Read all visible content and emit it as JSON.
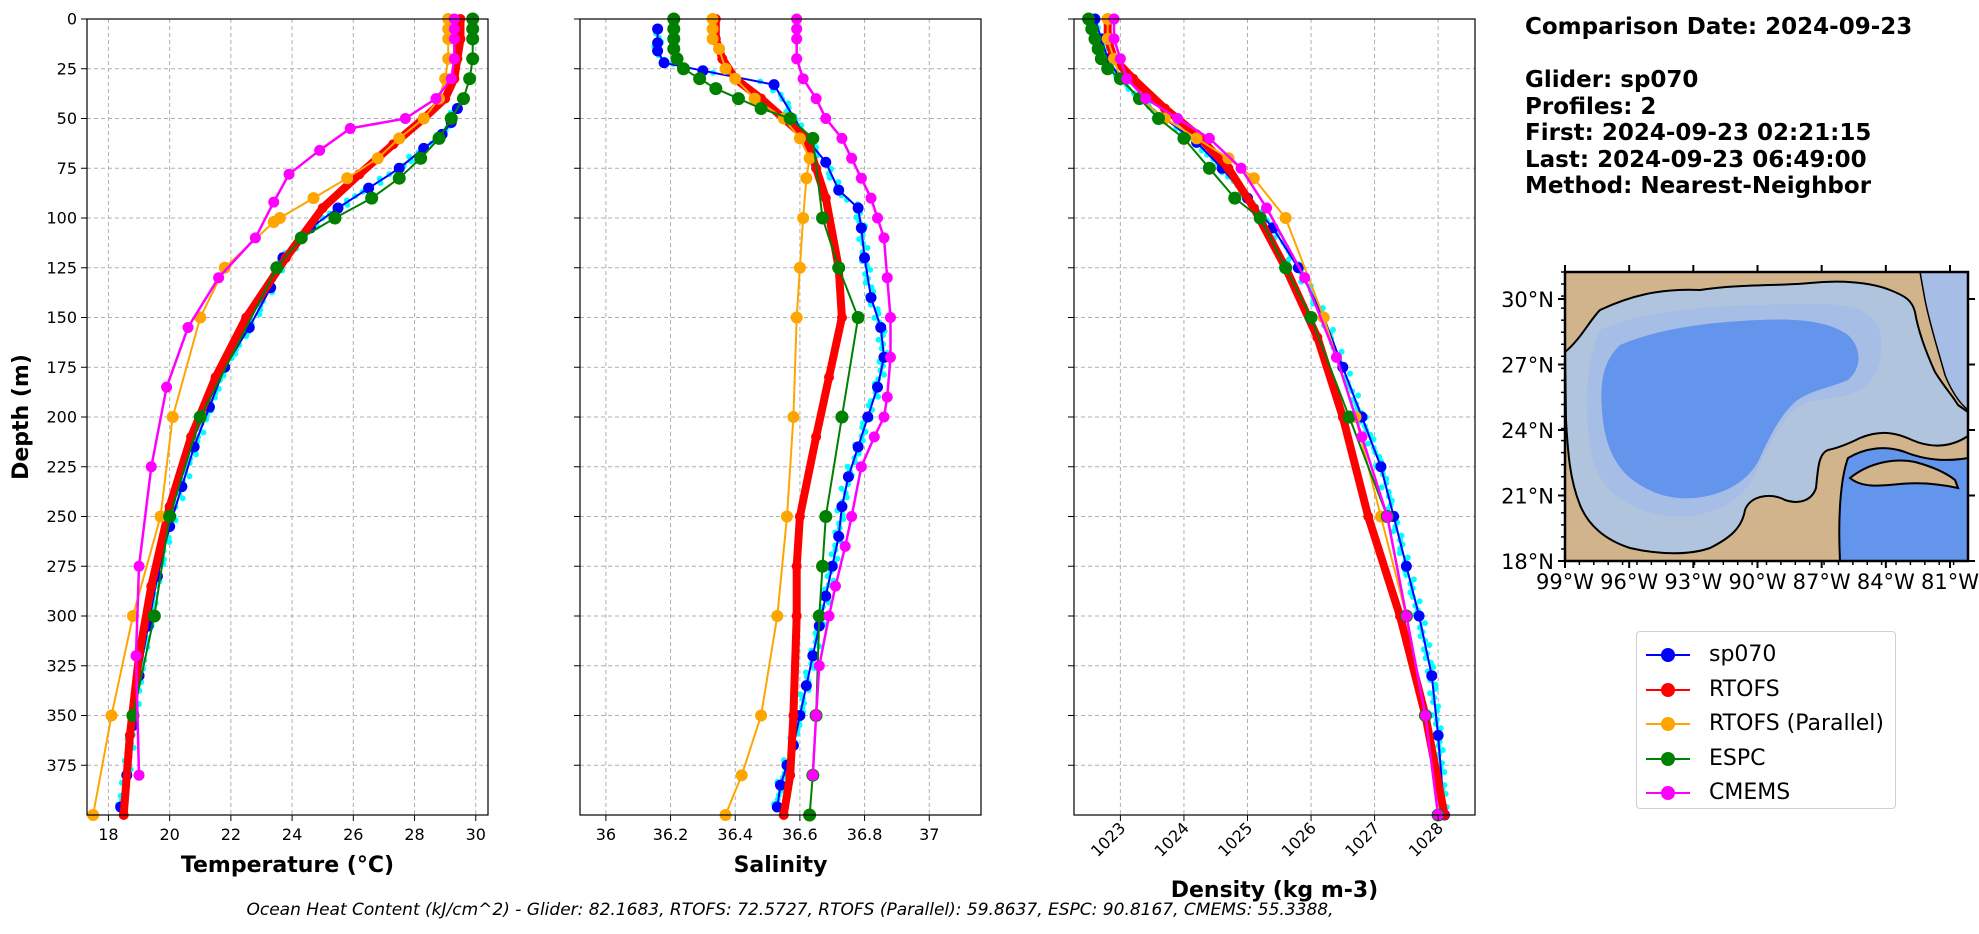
{
  "info": {
    "comparison": "Comparison Date: 2024-09-23",
    "glider": "Glider: sp070",
    "profiles": "Profiles: 2",
    "first": "First: 2024-09-23 02:21:15",
    "last": "Last: 2024-09-23 06:49:00",
    "method": "Method: Nearest-Neighbor"
  },
  "footer": "Ocean Heat Content (kJ/cm^2) - Glider: 82.1683,  RTOFS: 72.5727,  RTOFS (Parallel): 59.8637,  ESPC: 90.8167,  CMEMS: 55.3388,",
  "colors": {
    "sp070": "#0000ff",
    "RTOFS": "#ff0000",
    "RTOFS_parallel": "#ffa500",
    "ESPC": "#008000",
    "CMEMS": "#ff00ff",
    "glider_raw": "#00ffff",
    "land": "#d2b48c",
    "shelf": "#b0c4de",
    "slope": "#a6bde6",
    "deep": "#6495ed"
  },
  "legend": [
    {
      "label": "sp070",
      "color": "#0000ff"
    },
    {
      "label": "RTOFS",
      "color": "#ff0000"
    },
    {
      "label": "RTOFS (Parallel)",
      "color": "#ffa500"
    },
    {
      "label": "ESPC",
      "color": "#008000"
    },
    {
      "label": "CMEMS",
      "color": "#ff00ff"
    }
  ],
  "chart_data": [
    {
      "type": "line",
      "xlabel": "Temperature (°C)",
      "ylabel": "Depth (m)",
      "xlim": [
        17.3,
        30.4
      ],
      "ylim": [
        400,
        0
      ],
      "xticks": [
        18,
        20,
        22,
        24,
        26,
        28,
        30
      ],
      "yticks": [
        0,
        25,
        50,
        75,
        100,
        125,
        150,
        175,
        200,
        225,
        250,
        275,
        300,
        325,
        350,
        375
      ],
      "grid": true,
      "series": [
        {
          "name": "sp070",
          "x": [
            29.4,
            29.2,
            28.9,
            28.3,
            27.5,
            26.5,
            25.5,
            24.6,
            23.7,
            23.3,
            22.6,
            21.8,
            21.3,
            20.8,
            20.4,
            20.0,
            19.6,
            19.3,
            19.0,
            18.8,
            18.6,
            18.4
          ],
          "y": [
            45,
            52,
            58,
            65,
            75,
            85,
            95,
            105,
            120,
            135,
            155,
            175,
            195,
            215,
            235,
            255,
            280,
            305,
            330,
            355,
            380,
            396
          ]
        },
        {
          "name": "RTOFS",
          "x": [
            29.5,
            29.5,
            29.4,
            29.3,
            29.0,
            28.3,
            27.3,
            26.2,
            25.0,
            23.8,
            22.5,
            21.5,
            20.7,
            20.0,
            19.4,
            19.0,
            18.7,
            18.5
          ],
          "y": [
            0,
            10,
            20,
            30,
            40,
            50,
            63,
            78,
            95,
            120,
            150,
            180,
            210,
            245,
            285,
            320,
            360,
            400
          ]
        },
        {
          "name": "RTOFS (Parallel)",
          "x": [
            29.1,
            29.1,
            29.1,
            29.1,
            29.0,
            28.8,
            28.3,
            27.5,
            26.8,
            25.8,
            24.7,
            23.6,
            23.4,
            21.8,
            21.0,
            20.1,
            19.7,
            18.8,
            18.1,
            17.5
          ],
          "y": [
            0,
            5,
            10,
            20,
            30,
            40,
            50,
            60,
            70,
            80,
            90,
            100,
            102,
            125,
            150,
            200,
            250,
            300,
            350,
            400
          ]
        },
        {
          "name": "ESPC",
          "x": [
            29.9,
            29.9,
            29.9,
            29.9,
            29.8,
            29.6,
            29.2,
            28.8,
            28.2,
            27.5,
            26.6,
            25.4,
            24.3,
            23.5,
            21.0,
            20.0,
            19.5,
            18.8
          ],
          "y": [
            0,
            5,
            10,
            20,
            30,
            40,
            50,
            60,
            70,
            80,
            90,
            100,
            110,
            125,
            200,
            250,
            300,
            350
          ]
        },
        {
          "name": "CMEMS",
          "x": [
            29.3,
            29.3,
            29.3,
            29.3,
            29.2,
            28.7,
            27.7,
            25.9,
            24.9,
            23.9,
            23.4,
            22.8,
            21.6,
            20.6,
            19.9,
            19.4,
            19.0,
            18.9,
            19.0
          ],
          "y": [
            0,
            5,
            10,
            20,
            30,
            40,
            50,
            55,
            66,
            78,
            92,
            110,
            130,
            155,
            185,
            225,
            275,
            320,
            380
          ]
        }
      ]
    },
    {
      "type": "line",
      "xlabel": "Salinity",
      "ylabel": "",
      "xlim": [
        35.92,
        37.16
      ],
      "ylim": [
        400,
        0
      ],
      "xticks": [
        36.0,
        36.2,
        36.4,
        36.6,
        36.8,
        37.0
      ],
      "yticks": [
        0,
        25,
        50,
        75,
        100,
        125,
        150,
        175,
        200,
        225,
        250,
        275,
        300,
        325,
        350,
        375
      ],
      "grid": true,
      "series": [
        {
          "name": "sp070",
          "x": [
            36.16,
            36.16,
            36.16,
            36.18,
            36.3,
            36.52,
            36.62,
            36.68,
            36.72,
            36.78,
            36.79,
            36.8,
            36.82,
            36.85,
            36.86,
            36.84,
            36.81,
            36.78,
            36.75,
            36.73,
            36.72,
            36.7,
            36.68,
            36.66,
            36.64,
            36.62,
            36.6,
            36.58,
            36.56,
            36.54,
            36.53
          ],
          "y": [
            5,
            12,
            16,
            22,
            26,
            33,
            60,
            72,
            86,
            95,
            105,
            120,
            140,
            155,
            170,
            185,
            200,
            215,
            230,
            245,
            260,
            275,
            290,
            305,
            320,
            335,
            350,
            365,
            375,
            385,
            396
          ]
        },
        {
          "name": "RTOFS",
          "x": [
            36.34,
            36.34,
            36.36,
            36.4,
            36.48,
            36.55,
            36.62,
            36.65,
            36.68,
            36.72,
            36.73,
            36.69,
            36.65,
            36.6,
            36.59,
            36.59,
            36.58,
            36.57,
            36.55
          ],
          "y": [
            0,
            10,
            20,
            30,
            40,
            50,
            60,
            75,
            90,
            125,
            150,
            180,
            210,
            250,
            275,
            300,
            350,
            380,
            400
          ]
        },
        {
          "name": "RTOFS (Parallel)",
          "x": [
            36.33,
            36.33,
            36.33,
            36.35,
            36.37,
            36.4,
            36.46,
            36.55,
            36.6,
            36.63,
            36.62,
            36.61,
            36.6,
            36.59,
            36.58,
            36.56,
            36.53,
            36.48,
            36.42,
            36.37
          ],
          "y": [
            0,
            5,
            10,
            15,
            25,
            30,
            40,
            50,
            60,
            70,
            80,
            100,
            125,
            150,
            200,
            250,
            300,
            350,
            380,
            400
          ]
        },
        {
          "name": "ESPC",
          "x": [
            36.21,
            36.21,
            36.21,
            36.21,
            36.22,
            36.24,
            36.29,
            36.34,
            36.41,
            36.48,
            36.57,
            36.64,
            36.67,
            36.72,
            36.78,
            36.73,
            36.68,
            36.67,
            36.66,
            36.65,
            36.64,
            36.63
          ],
          "y": [
            0,
            5,
            10,
            15,
            20,
            25,
            30,
            35,
            40,
            45,
            50,
            60,
            100,
            125,
            150,
            200,
            250,
            275,
            300,
            350,
            380,
            400
          ]
        },
        {
          "name": "CMEMS",
          "x": [
            36.59,
            36.59,
            36.59,
            36.59,
            36.61,
            36.65,
            36.68,
            36.73,
            36.76,
            36.79,
            36.82,
            36.84,
            36.86,
            36.87,
            36.88,
            36.88,
            36.87,
            36.86,
            36.83,
            36.79,
            36.76,
            36.74,
            36.71,
            36.69,
            36.66,
            36.65,
            36.64
          ],
          "y": [
            0,
            5,
            10,
            20,
            30,
            40,
            50,
            60,
            70,
            80,
            90,
            100,
            110,
            130,
            150,
            170,
            190,
            200,
            210,
            225,
            250,
            265,
            285,
            300,
            325,
            350,
            380
          ]
        }
      ]
    },
    {
      "type": "line",
      "xlabel": "Density (kg m-3)",
      "ylabel": "",
      "xlim": [
        1022.27,
        1028.58
      ],
      "ylim": [
        400,
        0
      ],
      "xticks": [
        1023,
        1024,
        1025,
        1026,
        1027,
        1028
      ],
      "yticks": [
        0,
        25,
        50,
        75,
        100,
        125,
        150,
        175,
        200,
        225,
        250,
        275,
        300,
        325,
        350,
        375
      ],
      "grid": true,
      "series": [
        {
          "name": "sp070",
          "x": [
            1022.6,
            1022.7,
            1022.8,
            1023.0,
            1023.3,
            1023.7,
            1024.2,
            1024.6,
            1025.0,
            1025.4,
            1025.8,
            1026.2,
            1026.5,
            1026.8,
            1027.1,
            1027.3,
            1027.5,
            1027.7,
            1027.9,
            1028.0,
            1028.1
          ],
          "y": [
            0,
            10,
            20,
            30,
            40,
            50,
            62,
            75,
            90,
            105,
            125,
            150,
            175,
            200,
            225,
            250,
            275,
            300,
            330,
            360,
            400
          ]
        },
        {
          "name": "RTOFS",
          "x": [
            1022.8,
            1022.8,
            1022.9,
            1023.2,
            1023.7,
            1024.2,
            1024.7,
            1025.1,
            1025.6,
            1026.1,
            1026.5,
            1026.9,
            1027.4,
            1027.8,
            1028.1
          ],
          "y": [
            0,
            10,
            20,
            30,
            45,
            58,
            75,
            95,
            125,
            160,
            200,
            250,
            300,
            350,
            400
          ]
        },
        {
          "name": "RTOFS (Parallel)",
          "x": [
            1022.8,
            1022.8,
            1022.9,
            1023.0,
            1023.3,
            1023.7,
            1024.2,
            1024.7,
            1025.1,
            1025.6,
            1026.2,
            1026.7,
            1027.1,
            1027.5,
            1027.8,
            1028.0
          ],
          "y": [
            0,
            10,
            20,
            30,
            40,
            50,
            60,
            70,
            80,
            100,
            150,
            200,
            250,
            300,
            350,
            400
          ]
        },
        {
          "name": "ESPC",
          "x": [
            1022.5,
            1022.55,
            1022.6,
            1022.65,
            1022.7,
            1022.8,
            1023.0,
            1023.3,
            1023.6,
            1024.0,
            1024.4,
            1024.8,
            1025.2,
            1025.6,
            1026.0,
            1026.6,
            1027.2,
            1027.5,
            1027.8,
            1028.0
          ],
          "y": [
            0,
            5,
            10,
            15,
            20,
            25,
            30,
            40,
            50,
            60,
            75,
            90,
            100,
            125,
            150,
            200,
            250,
            300,
            350,
            400
          ]
        },
        {
          "name": "CMEMS",
          "x": [
            1022.9,
            1022.9,
            1023.0,
            1023.1,
            1023.4,
            1023.9,
            1024.4,
            1024.9,
            1025.3,
            1025.9,
            1026.4,
            1026.8,
            1027.2,
            1027.5,
            1027.8,
            1028.0
          ],
          "y": [
            0,
            10,
            20,
            30,
            40,
            50,
            60,
            75,
            95,
            130,
            170,
            210,
            250,
            300,
            350,
            400
          ]
        }
      ]
    }
  ],
  "map": {
    "xticks": [
      "99°W",
      "96°W",
      "93°W",
      "90°W",
      "87°W",
      "84°W",
      "81°W"
    ],
    "yticks": [
      "30°N",
      "27°N",
      "24°N",
      "21°N",
      "18°N"
    ]
  }
}
